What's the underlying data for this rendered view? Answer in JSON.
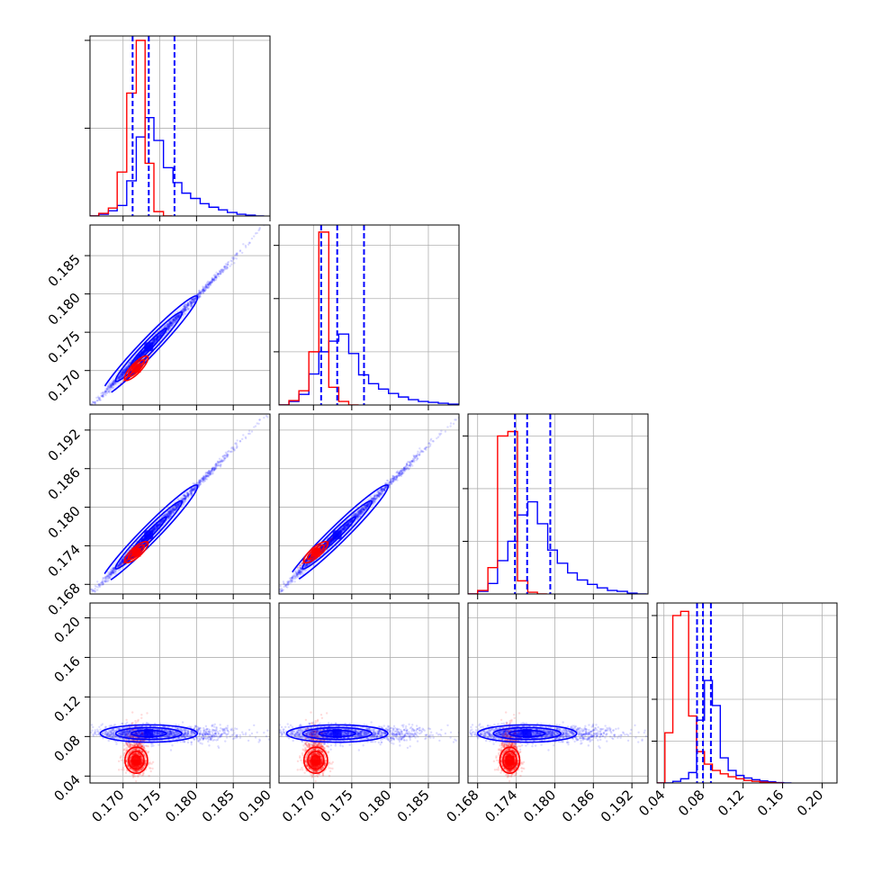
{
  "chart_data": {
    "type": "corner",
    "colors": {
      "series_a": "#0000ff",
      "series_b": "#ff0000",
      "grid": "#b0b0b0",
      "frame": "#000000"
    },
    "grid": true,
    "parameters": [
      {
        "range": [
          0.1655,
          0.19
        ],
        "ticks": [
          0.17,
          0.175,
          0.18,
          0.185,
          0.19
        ],
        "tick_labels": [
          "0.170",
          "0.175",
          "0.180",
          "0.185",
          "0.190"
        ]
      },
      {
        "range": [
          0.1655,
          0.189
        ],
        "ticks": [
          0.17,
          0.175,
          0.18,
          0.185
        ],
        "tick_labels": [
          "0.170",
          "0.175",
          "0.180",
          "0.185"
        ]
      },
      {
        "range": [
          0.1665,
          0.1945
        ],
        "ticks": [
          0.168,
          0.174,
          0.18,
          0.186,
          0.192
        ],
        "tick_labels": [
          "0.168",
          "0.174",
          "0.180",
          "0.186",
          "0.192"
        ]
      },
      {
        "range": [
          0.033,
          0.215
        ],
        "ticks": [
          0.04,
          0.08,
          0.12,
          0.16,
          0.2
        ],
        "tick_labels": [
          "0.04",
          "0.08",
          "0.12",
          "0.16",
          "0.20"
        ]
      }
    ],
    "diag_y_max": [
      0.205,
      0.203,
      0.205,
      0.43
    ],
    "diag_grid_y": [
      [
        0.1,
        0.2
      ],
      [
        0.06,
        0.12,
        0.18
      ],
      [
        0.06,
        0.12,
        0.18
      ],
      [
        0.1,
        0.2,
        0.3,
        0.4
      ]
    ],
    "histograms": [
      {
        "blue": [
          [
            0.1655,
            0.0
          ],
          [
            0.1667,
            0.002
          ],
          [
            0.168,
            0.006
          ],
          [
            0.1692,
            0.012
          ],
          [
            0.1705,
            0.04
          ],
          [
            0.1718,
            0.09
          ],
          [
            0.173,
            0.112
          ],
          [
            0.1742,
            0.086
          ],
          [
            0.1755,
            0.055
          ],
          [
            0.1768,
            0.038
          ],
          [
            0.178,
            0.026
          ],
          [
            0.1792,
            0.02
          ],
          [
            0.1805,
            0.014
          ],
          [
            0.1817,
            0.01
          ],
          [
            0.183,
            0.007
          ],
          [
            0.1842,
            0.004
          ],
          [
            0.1855,
            0.002
          ],
          [
            0.1867,
            0.001
          ],
          [
            0.188,
            0.0
          ]
        ],
        "red": [
          [
            0.1655,
            0.0
          ],
          [
            0.1667,
            0.003
          ],
          [
            0.168,
            0.009
          ],
          [
            0.1692,
            0.05
          ],
          [
            0.1705,
            0.14
          ],
          [
            0.1718,
            0.2
          ],
          [
            0.173,
            0.06
          ],
          [
            0.1742,
            0.005
          ],
          [
            0.1755,
            0.0
          ]
        ],
        "quantiles": [
          0.1713,
          0.1735,
          0.177
        ]
      },
      {
        "blue": [
          [
            0.1655,
            0.0
          ],
          [
            0.1668,
            0.004
          ],
          [
            0.1681,
            0.012
          ],
          [
            0.1694,
            0.035
          ],
          [
            0.1707,
            0.06
          ],
          [
            0.172,
            0.072
          ],
          [
            0.1733,
            0.08
          ],
          [
            0.1746,
            0.058
          ],
          [
            0.1759,
            0.034
          ],
          [
            0.1772,
            0.024
          ],
          [
            0.1785,
            0.018
          ],
          [
            0.1798,
            0.013
          ],
          [
            0.1811,
            0.009
          ],
          [
            0.1824,
            0.006
          ],
          [
            0.1837,
            0.004
          ],
          [
            0.185,
            0.003
          ],
          [
            0.1863,
            0.002
          ],
          [
            0.1876,
            0.001
          ],
          [
            0.1889,
            0.0
          ]
        ],
        "red": [
          [
            0.1655,
            0.0
          ],
          [
            0.1668,
            0.005
          ],
          [
            0.1681,
            0.016
          ],
          [
            0.1694,
            0.06
          ],
          [
            0.1707,
            0.195
          ],
          [
            0.172,
            0.02
          ],
          [
            0.1733,
            0.004
          ],
          [
            0.1746,
            0.0
          ]
        ],
        "quantiles": [
          0.171,
          0.1731,
          0.1766
        ]
      },
      {
        "blue": [
          [
            0.1665,
            0.0
          ],
          [
            0.168,
            0.003
          ],
          [
            0.1696,
            0.012
          ],
          [
            0.1711,
            0.038
          ],
          [
            0.1727,
            0.06
          ],
          [
            0.1742,
            0.09
          ],
          [
            0.1758,
            0.105
          ],
          [
            0.1773,
            0.08
          ],
          [
            0.1789,
            0.05
          ],
          [
            0.1804,
            0.035
          ],
          [
            0.182,
            0.024
          ],
          [
            0.1835,
            0.016
          ],
          [
            0.1851,
            0.011
          ],
          [
            0.1866,
            0.007
          ],
          [
            0.1882,
            0.004
          ],
          [
            0.1897,
            0.003
          ],
          [
            0.1913,
            0.001
          ],
          [
            0.1928,
            0.0
          ]
        ],
        "red": [
          [
            0.1665,
            0.0
          ],
          [
            0.168,
            0.004
          ],
          [
            0.1696,
            0.03
          ],
          [
            0.1711,
            0.18
          ],
          [
            0.1727,
            0.185
          ],
          [
            0.1742,
            0.015
          ],
          [
            0.1758,
            0.002
          ],
          [
            0.1773,
            0.0
          ]
        ],
        "quantiles": [
          0.1738,
          0.1757,
          0.1793
        ]
      },
      {
        "blue": [
          [
            0.033,
            0.0
          ],
          [
            0.041,
            0.0
          ],
          [
            0.049,
            0.004
          ],
          [
            0.057,
            0.01
          ],
          [
            0.065,
            0.025
          ],
          [
            0.073,
            0.15
          ],
          [
            0.081,
            0.245
          ],
          [
            0.089,
            0.185
          ],
          [
            0.097,
            0.06
          ],
          [
            0.105,
            0.03
          ],
          [
            0.113,
            0.018
          ],
          [
            0.121,
            0.012
          ],
          [
            0.129,
            0.008
          ],
          [
            0.137,
            0.005
          ],
          [
            0.145,
            0.003
          ],
          [
            0.153,
            0.001
          ],
          [
            0.161,
            0.0
          ]
        ],
        "red": [
          [
            0.033,
            0.0
          ],
          [
            0.041,
            0.12
          ],
          [
            0.049,
            0.4
          ],
          [
            0.057,
            0.41
          ],
          [
            0.065,
            0.16
          ],
          [
            0.073,
            0.075
          ],
          [
            0.081,
            0.045
          ],
          [
            0.089,
            0.03
          ],
          [
            0.097,
            0.022
          ],
          [
            0.105,
            0.015
          ],
          [
            0.113,
            0.01
          ],
          [
            0.121,
            0.006
          ],
          [
            0.129,
            0.004
          ],
          [
            0.137,
            0.002
          ],
          [
            0.145,
            0.001
          ],
          [
            0.153,
            0.0
          ]
        ],
        "quantiles": [
          0.0735,
          0.0795,
          0.0875
        ]
      }
    ],
    "distributions": {
      "blue": {
        "mean": [
          0.1735,
          0.1731,
          0.1757,
          0.083
        ],
        "sd": [
          0.003,
          0.003,
          0.0035,
          0.004
        ],
        "n_points": 1700
      },
      "red": {
        "mean": [
          0.1718,
          0.1703,
          0.173,
          0.056
        ],
        "sd": [
          0.0007,
          0.0007,
          0.0007,
          0.006
        ],
        "n_points": 1300
      }
    }
  }
}
